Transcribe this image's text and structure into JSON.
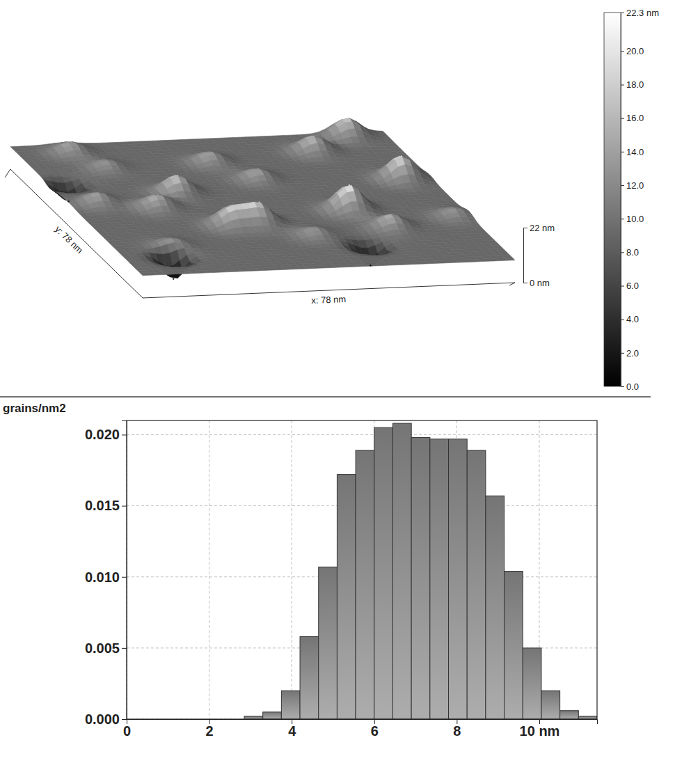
{
  "chart_data": [
    {
      "type": "surface",
      "x_label": "x: 78 nm",
      "y_label": "y: 78 nm",
      "xlim": [
        0,
        78
      ],
      "ylim": [
        0,
        78
      ],
      "zlim": [
        0,
        22
      ],
      "zticks": [
        {
          "value": 0,
          "label": "0 nm"
        },
        {
          "value": 22,
          "label": "22 nm"
        }
      ],
      "surface": {
        "base": 9,
        "features": [
          {
            "x": 55,
            "y": 33,
            "z": 19
          },
          {
            "x": 72,
            "y": 50,
            "z": 18
          },
          {
            "x": 34,
            "y": 27,
            "z": 17
          },
          {
            "x": 28,
            "y": 27,
            "z": 16
          },
          {
            "x": 24,
            "y": 47,
            "z": 16
          },
          {
            "x": 17,
            "y": 39,
            "z": 14
          },
          {
            "x": 6,
            "y": 43,
            "z": 13
          },
          {
            "x": 11,
            "y": 73,
            "z": 13
          },
          {
            "x": 60,
            "y": 68,
            "z": 15
          },
          {
            "x": 70,
            "y": 76,
            "z": 16
          },
          {
            "x": 43,
            "y": 53,
            "z": 13
          },
          {
            "x": 60,
            "y": 22,
            "z": 14
          },
          {
            "x": 43,
            "y": 19,
            "z": 12
          },
          {
            "x": 12,
            "y": 16,
            "z": 12
          },
          {
            "x": 75,
            "y": 27,
            "z": 12
          },
          {
            "x": 15,
            "y": 63,
            "z": 12
          },
          {
            "x": 37,
            "y": 64,
            "z": 13
          },
          {
            "x": 10,
            "y": 10,
            "z": 0
          },
          {
            "x": 52,
            "y": 12,
            "z": 1
          },
          {
            "x": 4,
            "y": 55,
            "z": 2
          }
        ]
      },
      "colorbar": {
        "range": [
          0,
          22.3
        ],
        "colors": [
          "#000000",
          "#ffffff"
        ],
        "ticks": [
          {
            "value": 0,
            "label": "0.0"
          },
          {
            "value": 2,
            "label": "2.0"
          },
          {
            "value": 4,
            "label": "4.0"
          },
          {
            "value": 6,
            "label": "6.0"
          },
          {
            "value": 8,
            "label": "8.0"
          },
          {
            "value": 10,
            "label": "10.0"
          },
          {
            "value": 12,
            "label": "12.0"
          },
          {
            "value": 14,
            "label": "14.0"
          },
          {
            "value": 16,
            "label": "16.0"
          },
          {
            "value": 18,
            "label": "18.0"
          },
          {
            "value": 20,
            "label": "20.0"
          },
          {
            "value": 22.3,
            "label": "22.3 nm"
          }
        ]
      }
    },
    {
      "type": "histogram",
      "y_label": "grains/nm2",
      "bins": [
        2.85,
        3.3,
        3.75,
        4.2,
        4.65,
        5.1,
        5.55,
        6,
        6.45,
        6.9,
        7.35,
        7.8,
        8.25,
        8.7,
        9.15,
        9.6,
        10.05,
        10.5,
        10.95,
        11.4
      ],
      "values": [
        0.0002,
        0.0005,
        0.002,
        0.0058,
        0.0107,
        0.0172,
        0.0189,
        0.0205,
        0.0208,
        0.0198,
        0.0197,
        0.0197,
        0.0189,
        0.0157,
        0.0104,
        0.005,
        0.002,
        0.0006,
        0.0002
      ],
      "color": "#8c8c8c",
      "xlim": [
        0,
        11.4
      ],
      "ylim": [
        0,
        0.021
      ],
      "xticks": [
        0,
        2,
        4,
        6,
        8,
        {
          "value": 10,
          "label": "10 nm"
        }
      ],
      "yticks": [
        {
          "value": 0,
          "label": "0.000"
        },
        0.005,
        {
          "value": 0.01,
          "label": "0.010"
        },
        0.015,
        {
          "value": 0.02,
          "label": "0.020"
        }
      ],
      "grid": true
    }
  ]
}
